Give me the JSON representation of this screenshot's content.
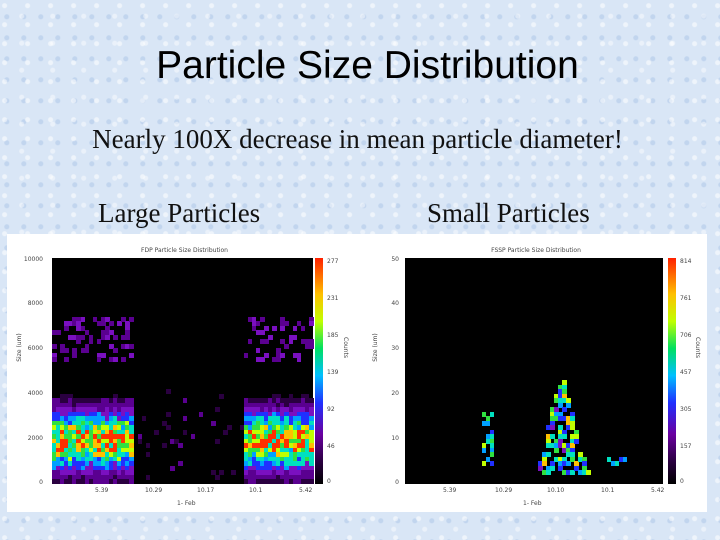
{
  "slide": {
    "title": "Particle Size Distribution",
    "subtitle": "Nearly 100X decrease in mean particle diameter!",
    "left_caption": "Large Particles",
    "right_caption": "Small Particles"
  },
  "left_plot": {
    "title": "FDP Particle Size Distribution",
    "ylabel": "Size (um)",
    "zlabel": "Counts",
    "xlabel": "1- Feb",
    "yticks": [
      "10000",
      "8000",
      "6000",
      "4000",
      "2000",
      "0"
    ],
    "xticks": [
      "5.39",
      "10.29",
      "10.17",
      "10.1",
      "5.42"
    ],
    "cbar_ticks": [
      "277",
      "231",
      "185",
      "139",
      "92",
      "46",
      "0"
    ]
  },
  "right_plot": {
    "title": "FSSP Particle Size Distribution",
    "ylabel": "Size (um)",
    "zlabel": "Counts",
    "xlabel": "1- Feb",
    "yticks": [
      "50",
      "40",
      "30",
      "20",
      "10",
      "0"
    ],
    "xticks": [
      "5.39",
      "10.29",
      "10.10",
      "10.1",
      "5.42"
    ],
    "cbar_ticks": [
      "814",
      "761",
      "706",
      "457",
      "305",
      "157",
      "0"
    ]
  },
  "colors": {
    "background": "#d9e6f6",
    "plot_background": "#000000"
  }
}
